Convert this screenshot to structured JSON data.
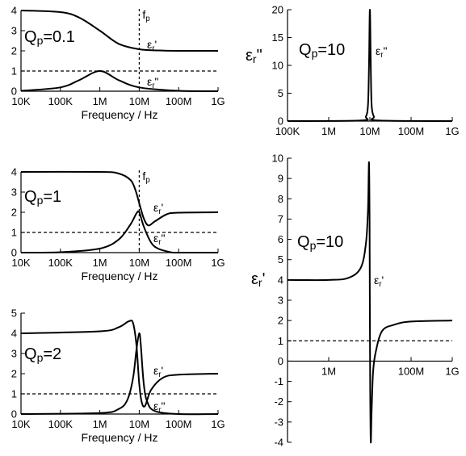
{
  "chart_data": [
    {
      "type": "line",
      "panel": "a",
      "annotation": "Qp=0.1",
      "xscale": "log",
      "xlim": [
        10000,
        1000000000
      ],
      "ylim": [
        0,
        4
      ],
      "x_ticks": [
        "10K",
        "100K",
        "1M",
        "10M",
        "100M",
        "1G"
      ],
      "y_ticks": [
        "0",
        "1",
        "2",
        "3",
        "4"
      ],
      "xlabel": "Frequency / Hz",
      "marker_label": "fp",
      "marker_x": 10000000,
      "reference_y": 1,
      "series": [
        {
          "name": "εr'",
          "x": [
            10000,
            100000,
            300000,
            1000000,
            3000000,
            10000000,
            30000000,
            100000000,
            1000000000
          ],
          "values": [
            4.0,
            3.92,
            3.65,
            3.0,
            2.35,
            2.08,
            2.02,
            2.0,
            2.0
          ]
        },
        {
          "name": "εr\"",
          "x": [
            10000,
            100000,
            300000,
            1000000,
            3000000,
            10000000,
            100000000,
            1000000000
          ],
          "values": [
            0.02,
            0.19,
            0.55,
            1.0,
            0.55,
            0.19,
            0.02,
            0.0
          ]
        }
      ]
    },
    {
      "type": "line",
      "panel": "b",
      "annotation": "Qp=1",
      "xscale": "log",
      "xlim": [
        10000,
        1000000000
      ],
      "ylim": [
        0,
        4
      ],
      "x_ticks": [
        "10K",
        "100K",
        "1M",
        "10M",
        "100M",
        "1G"
      ],
      "y_ticks": [
        "0",
        "1",
        "2",
        "3",
        "4"
      ],
      "xlabel": "Frequency / Hz",
      "marker_label": "fp",
      "marker_x": 10000000,
      "reference_y": 1,
      "series": [
        {
          "name": "εr'",
          "x": [
            10000,
            1000000,
            3000000,
            6000000,
            8000000,
            10000000,
            13000000,
            17000000,
            25000000,
            50000000,
            100000000,
            1000000000
          ],
          "values": [
            4.0,
            4.0,
            3.92,
            3.6,
            3.1,
            2.45,
            1.7,
            1.35,
            1.55,
            1.9,
            1.98,
            2.0
          ]
        },
        {
          "name": "εr\"",
          "x": [
            10000,
            100000,
            1000000,
            3000000,
            6000000,
            8500000,
            10000000,
            13000000,
            20000000,
            30000000,
            60000000,
            100000000,
            1000000000
          ],
          "values": [
            0.0,
            0.02,
            0.2,
            0.65,
            1.4,
            1.95,
            2.0,
            1.3,
            0.5,
            0.2,
            0.03,
            0.0,
            0.0
          ]
        }
      ]
    },
    {
      "type": "line",
      "panel": "c",
      "annotation": "Qp=2",
      "xscale": "log",
      "xlim": [
        10000,
        1000000000
      ],
      "ylim": [
        0,
        5
      ],
      "x_ticks": [
        "10K",
        "100K",
        "1M",
        "10M",
        "100M",
        "1G"
      ],
      "y_ticks": [
        "0",
        "1",
        "2",
        "3",
        "4",
        "5"
      ],
      "xlabel": "Frequency / Hz",
      "reference_y": 1,
      "series": [
        {
          "name": "εr'",
          "x": [
            10000,
            1000000,
            3000000,
            5500000,
            7000000,
            8500000,
            10000000,
            11500000,
            14000000,
            20000000,
            40000000,
            100000000,
            1000000000
          ],
          "values": [
            4.0,
            4.1,
            4.3,
            4.6,
            4.5,
            3.4,
            1.5,
            0.6,
            0.4,
            1.2,
            1.8,
            1.95,
            2.0
          ]
        },
        {
          "name": "εr\"",
          "x": [
            10000,
            1000000,
            3000000,
            5000000,
            7000000,
            8500000,
            10000000,
            11000000,
            13000000,
            16000000,
            25000000,
            100000000,
            1000000000
          ],
          "values": [
            0.0,
            0.05,
            0.25,
            0.7,
            1.8,
            3.2,
            4.0,
            3.4,
            1.5,
            0.6,
            0.15,
            0.0,
            0.0
          ]
        }
      ]
    },
    {
      "type": "line",
      "panel": "d",
      "annotation": "Qp=10",
      "xscale": "log",
      "xlim": [
        100000,
        1000000000
      ],
      "ylim": [
        0,
        20
      ],
      "x_ticks": [
        "100K",
        "1M",
        "10M",
        "100M",
        "1G"
      ],
      "y_ticks": [
        "0",
        "5",
        "10",
        "15",
        "20"
      ],
      "ylabel": "εr\"",
      "series": [
        {
          "name": "εr\"",
          "x": [
            100000,
            6000000,
            8000000,
            9000000,
            9500000,
            10000000,
            10500000,
            11000000,
            12500000,
            16000000,
            1000000000
          ],
          "values": [
            0.0,
            0.1,
            0.8,
            3.0,
            10.0,
            20.0,
            10.0,
            3.0,
            0.8,
            0.1,
            0.0
          ]
        }
      ]
    },
    {
      "type": "line",
      "panel": "e",
      "annotation": "Qp=10",
      "xscale": "log",
      "xlim": [
        100000,
        1000000000
      ],
      "ylim": [
        -4,
        10
      ],
      "x_ticks": [
        "1M",
        "100M",
        "1G"
      ],
      "y_ticks": [
        "-4",
        "-3",
        "-2",
        "-1",
        "0",
        "1",
        "2",
        "3",
        "4",
        "5",
        "6",
        "7",
        "8",
        "9",
        "10"
      ],
      "ylabel": "εr'",
      "reference_y": 1,
      "series": [
        {
          "name": "εr'",
          "x": [
            100000,
            1000000,
            3000000,
            6000000,
            8000000,
            9000000,
            9500000,
            9800000,
            10000000,
            10200000,
            10500000,
            11000000,
            12000000,
            14000000,
            20000000,
            40000000,
            100000000,
            1000000000
          ],
          "values": [
            4.0,
            4.0,
            4.1,
            4.6,
            5.8,
            7.5,
            9.8,
            7.0,
            2.0,
            -1.5,
            -4.0,
            -2.5,
            -0.5,
            0.5,
            1.5,
            1.8,
            1.95,
            2.0
          ]
        }
      ]
    }
  ]
}
